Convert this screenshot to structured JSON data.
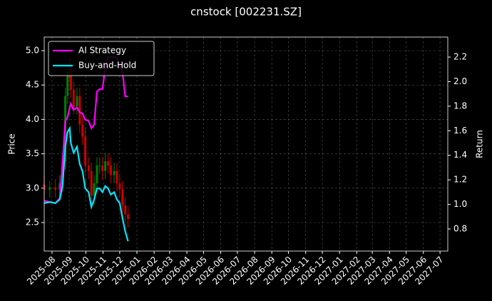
{
  "chart_data": {
    "type": "candlestick",
    "title": "cnstock [002231.SZ]",
    "ylabel": "Price",
    "y2label": "Return",
    "x": [
      "2025-07-18",
      "2025-07-28",
      "2025-08-07",
      "2025-08-15",
      "2025-08-20",
      "2025-08-25",
      "2025-08-29",
      "2025-09-02",
      "2025-09-04",
      "2025-09-09",
      "2025-09-15",
      "2025-09-20",
      "2025-09-25",
      "2025-09-30",
      "2025-10-06",
      "2025-10-11",
      "2025-10-16",
      "2025-10-21",
      "2025-10-26",
      "2025-10-31",
      "2025-11-05",
      "2025-11-10",
      "2025-11-15",
      "2025-11-21",
      "2025-11-26",
      "2025-12-01",
      "2025-12-06",
      "2025-12-11",
      "2025-12-16"
    ],
    "open": [
      3.05,
      2.98,
      3.01,
      2.98,
      3.07,
      3.39,
      4.34,
      4.69,
      4.78,
      4.43,
      4.19,
      4.34,
      3.92,
      3.75,
      3.33,
      3.25,
      2.89,
      3.07,
      3.33,
      3.33,
      3.25,
      3.39,
      3.33,
      3.19,
      3.25,
      3.07,
      2.98,
      2.75,
      2.62
    ],
    "high": [
      3.17,
      3.1,
      3.13,
      3.19,
      3.51,
      4.46,
      4.81,
      4.9,
      4.9,
      4.55,
      4.46,
      4.46,
      4.04,
      3.87,
      3.45,
      3.37,
      3.19,
      3.45,
      3.45,
      3.45,
      3.51,
      3.51,
      3.45,
      3.37,
      3.37,
      3.19,
      3.1,
      2.87,
      2.74
    ],
    "low": [
      2.86,
      2.86,
      2.86,
      2.86,
      2.95,
      3.27,
      4.22,
      4.57,
      4.31,
      4.07,
      4.07,
      3.8,
      3.63,
      3.21,
      3.13,
      2.77,
      2.77,
      2.95,
      3.21,
      3.13,
      3.13,
      3.21,
      3.07,
      3.07,
      2.95,
      2.86,
      2.63,
      2.5,
      2.43
    ],
    "close": [
      2.98,
      3.01,
      2.98,
      3.07,
      3.39,
      4.34,
      4.69,
      4.78,
      4.43,
      4.19,
      4.34,
      3.92,
      3.75,
      3.33,
      3.25,
      2.89,
      3.07,
      3.33,
      3.33,
      3.25,
      3.39,
      3.33,
      3.19,
      3.25,
      3.07,
      2.98,
      2.75,
      2.62,
      2.55
    ],
    "up_color": "#008000",
    "down_color": "#cc0000",
    "series": [
      {
        "name": "AI Strategy",
        "color": "#ff00ff",
        "axis": "y2",
        "values": [
          1.03,
          1.02,
          1.01,
          1.05,
          1.33,
          1.68,
          1.71,
          1.79,
          1.82,
          1.77,
          1.79,
          1.75,
          1.74,
          1.69,
          1.68,
          1.62,
          1.65,
          1.92,
          1.94,
          1.94,
          2.11,
          2.2,
          2.2,
          2.2,
          2.19,
          2.14,
          2.08,
          1.88,
          1.88
        ]
      },
      {
        "name": "Buy-and-Hold",
        "color": "#00e5ff",
        "axis": "y2",
        "values": [
          1.01,
          1.02,
          1.01,
          1.04,
          1.15,
          1.47,
          1.59,
          1.62,
          1.5,
          1.42,
          1.47,
          1.33,
          1.27,
          1.13,
          1.1,
          0.98,
          1.04,
          1.13,
          1.13,
          1.1,
          1.15,
          1.13,
          1.08,
          1.1,
          1.04,
          1.01,
          0.89,
          0.78,
          0.7
        ]
      }
    ],
    "xlim": [
      "2025-07-18",
      "2027-07-15"
    ],
    "xticks": [
      "2025-08",
      "2025-09",
      "2025-10",
      "2025-11",
      "2025-12",
      "2026-01",
      "2026-02",
      "2026-03",
      "2026-04",
      "2026-05",
      "2026-06",
      "2026-07",
      "2026-08",
      "2026-09",
      "2026-10",
      "2026-11",
      "2026-12",
      "2027-01",
      "2027-02",
      "2027-03",
      "2027-04",
      "2027-05",
      "2027-06",
      "2027-07"
    ],
    "ylim": [
      2.085,
      5.197
    ],
    "yticks": [
      2.5,
      {
        "value": 3,
        "label": "3.0"
      },
      3.5,
      {
        "value": 4,
        "label": "4.0"
      },
      4.5,
      {
        "value": 5,
        "label": "5.0"
      }
    ],
    "y2lim": [
      0.62,
      2.363
    ],
    "y2ticks": [
      0.8,
      {
        "value": 1,
        "label": "1.0"
      },
      1.2,
      1.4,
      1.6,
      1.8,
      {
        "value": 2,
        "label": "2.0"
      },
      2.2
    ],
    "grid": true,
    "legend": "upper left"
  }
}
